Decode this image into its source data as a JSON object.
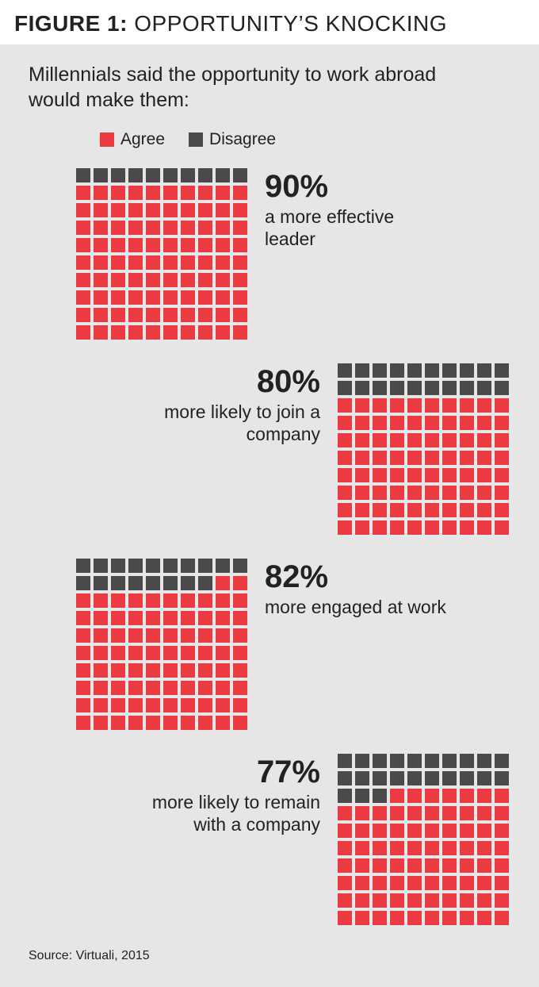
{
  "figure_label": "FIGURE 1:",
  "figure_title": "OPPORTUNITY’S KNOCKING",
  "subtitle": "Millennials said the opportunity to work abroad would make them:",
  "legend": {
    "agree": {
      "label": "Agree",
      "color": "#ec3a43"
    },
    "disagree": {
      "label": "Disagree",
      "color": "#4a4a4a"
    }
  },
  "background_color": "#e6e6e6",
  "waffle": {
    "rows": 10,
    "cols": 10,
    "cell_size": 18,
    "gap": 4
  },
  "items": [
    {
      "percent": "90%",
      "value": 90,
      "description": "a more effective leader",
      "text_side": "right",
      "offset": "indent-left"
    },
    {
      "percent": "80%",
      "value": 80,
      "description": "more likely to join a company",
      "text_side": "left",
      "offset": "indent-right"
    },
    {
      "percent": "82%",
      "value": 82,
      "description": "more engaged at work",
      "text_side": "right",
      "offset": "indent-left"
    },
    {
      "percent": "77%",
      "value": 77,
      "description": "more likely to remain with a company",
      "text_side": "left",
      "offset": "indent-right"
    }
  ],
  "source": "Source: Virtuali, 2015",
  "typography": {
    "title_fontsize": 28,
    "subtitle_fontsize": 25,
    "legend_fontsize": 21,
    "percent_fontsize": 40,
    "desc_fontsize": 23,
    "source_fontsize": 16,
    "text_color": "#222222"
  }
}
